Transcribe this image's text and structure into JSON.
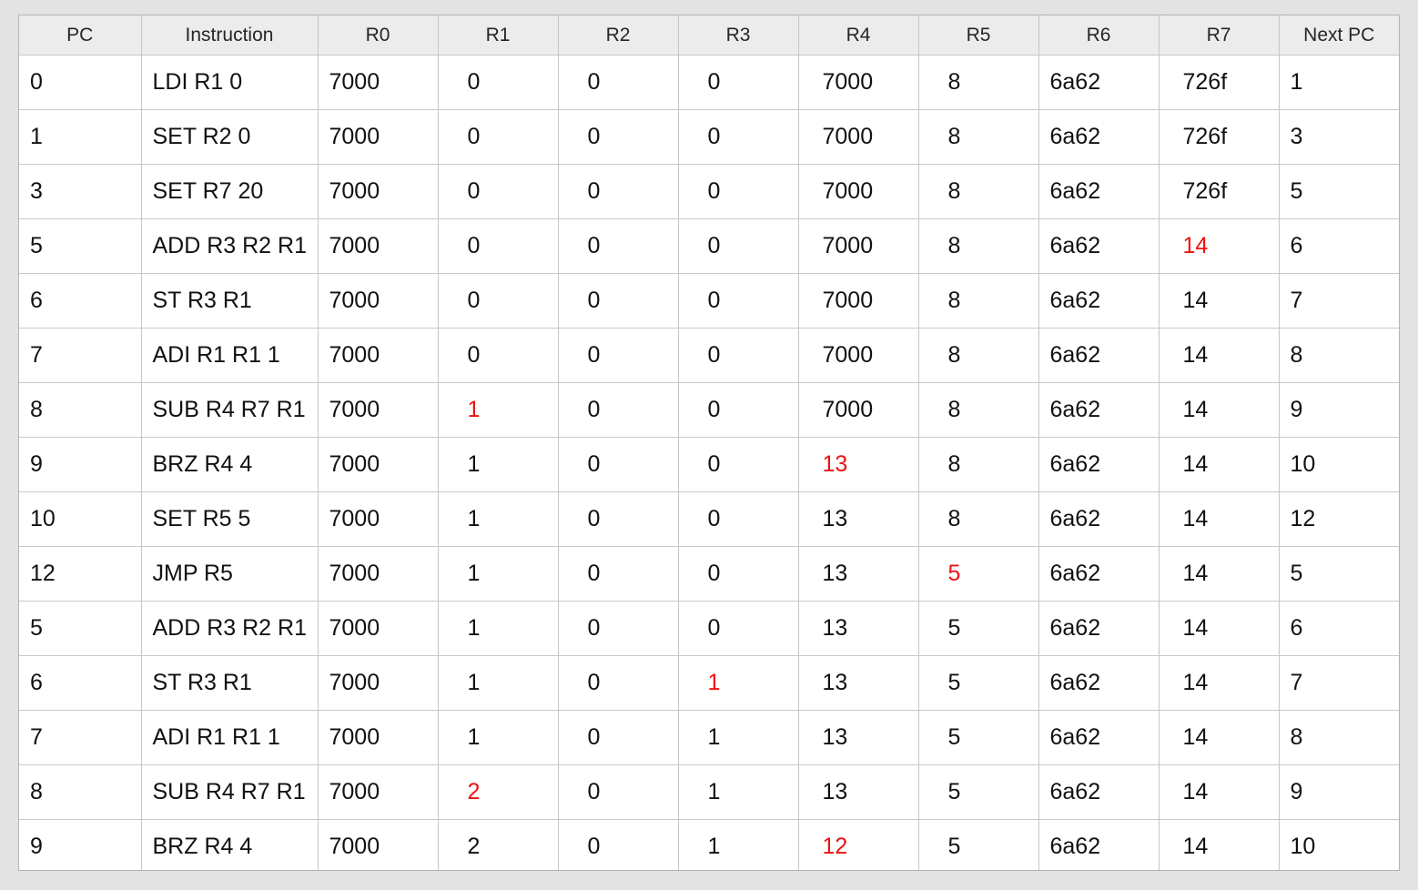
{
  "columns": [
    "PC",
    "Instruction",
    "R0",
    "R1",
    "R2",
    "R3",
    "R4",
    "R5",
    "R6",
    "R7",
    "Next PC"
  ],
  "rows": [
    {
      "cells": [
        "0",
        "LDI R1 0",
        "7000",
        "0",
        "0",
        "0",
        "7000",
        "8",
        "6a62",
        "726f",
        "1"
      ],
      "changed": []
    },
    {
      "cells": [
        "1",
        "SET R2 0",
        "7000",
        "0",
        "0",
        "0",
        "7000",
        "8",
        "6a62",
        "726f",
        "3"
      ],
      "changed": []
    },
    {
      "cells": [
        "3",
        "SET R7 20",
        "7000",
        "0",
        "0",
        "0",
        "7000",
        "8",
        "6a62",
        "726f",
        "5"
      ],
      "changed": []
    },
    {
      "cells": [
        "5",
        "ADD R3 R2 R1",
        "7000",
        "0",
        "0",
        "0",
        "7000",
        "8",
        "6a62",
        "14",
        "6"
      ],
      "changed": [
        9
      ]
    },
    {
      "cells": [
        "6",
        "ST R3 R1",
        "7000",
        "0",
        "0",
        "0",
        "7000",
        "8",
        "6a62",
        "14",
        "7"
      ],
      "changed": []
    },
    {
      "cells": [
        "7",
        "ADI R1 R1 1",
        "7000",
        "0",
        "0",
        "0",
        "7000",
        "8",
        "6a62",
        "14",
        "8"
      ],
      "changed": []
    },
    {
      "cells": [
        "8",
        "SUB R4 R7 R1",
        "7000",
        "1",
        "0",
        "0",
        "7000",
        "8",
        "6a62",
        "14",
        "9"
      ],
      "changed": [
        3
      ]
    },
    {
      "cells": [
        "9",
        "BRZ R4 4",
        "7000",
        "1",
        "0",
        "0",
        "13",
        "8",
        "6a62",
        "14",
        "10"
      ],
      "changed": [
        6
      ]
    },
    {
      "cells": [
        "10",
        "SET R5 5",
        "7000",
        "1",
        "0",
        "0",
        "13",
        "8",
        "6a62",
        "14",
        "12"
      ],
      "changed": []
    },
    {
      "cells": [
        "12",
        "JMP R5",
        "7000",
        "1",
        "0",
        "0",
        "13",
        "5",
        "6a62",
        "14",
        "5"
      ],
      "changed": [
        7
      ]
    },
    {
      "cells": [
        "5",
        "ADD R3 R2 R1",
        "7000",
        "1",
        "0",
        "0",
        "13",
        "5",
        "6a62",
        "14",
        "6"
      ],
      "changed": []
    },
    {
      "cells": [
        "6",
        "ST R3 R1",
        "7000",
        "1",
        "0",
        "1",
        "13",
        "5",
        "6a62",
        "14",
        "7"
      ],
      "changed": [
        5
      ]
    },
    {
      "cells": [
        "7",
        "ADI R1 R1 1",
        "7000",
        "1",
        "0",
        "1",
        "13",
        "5",
        "6a62",
        "14",
        "8"
      ],
      "changed": []
    },
    {
      "cells": [
        "8",
        "SUB R4 R7 R1",
        "7000",
        "2",
        "0",
        "1",
        "13",
        "5",
        "6a62",
        "14",
        "9"
      ],
      "changed": [
        3
      ]
    },
    {
      "cells": [
        "9",
        "BRZ R4 4",
        "7000",
        "2",
        "0",
        "1",
        "12",
        "5",
        "6a62",
        "14",
        "10"
      ],
      "changed": [
        6
      ]
    }
  ],
  "colors": {
    "changed_value": "#ee1111",
    "header_bg": "#ececec",
    "window_bg": "#e3e3e3"
  }
}
